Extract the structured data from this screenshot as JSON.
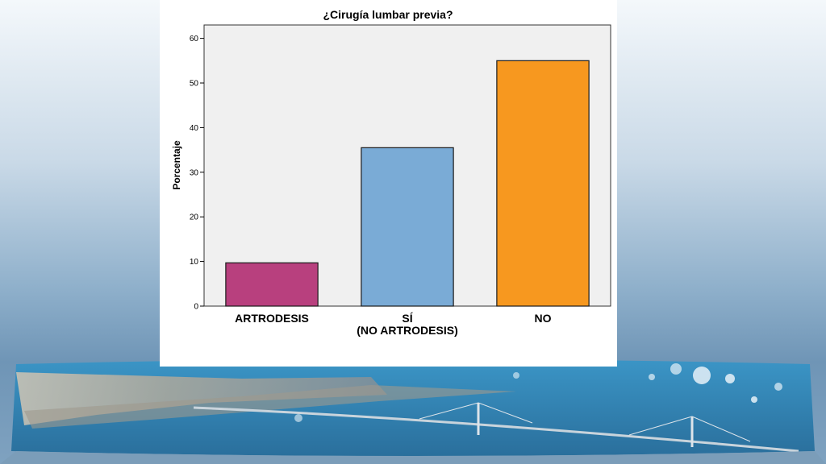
{
  "slide": {
    "background_image": "harbor-bridge-panorama",
    "colors": {
      "sky_top": "#f4f8fb",
      "sky_bottom": "#6f95b6",
      "sea": "#2f86b8"
    }
  },
  "chart_data": {
    "type": "bar",
    "title": "¿Cirugía lumbar previa?",
    "xlabel": "",
    "ylabel": "Porcentaje",
    "ylim": [
      0,
      63
    ],
    "yticks": [
      0,
      10,
      20,
      30,
      40,
      50,
      60
    ],
    "grid": false,
    "legend": "none",
    "plot_background": "#f0f0f0",
    "categories": [
      [
        "ARTRODESIS"
      ],
      [
        "SÍ",
        "(NO ARTRODESIS)"
      ],
      [
        "NO"
      ]
    ],
    "values": [
      9.7,
      35.5,
      55.0
    ],
    "colors": [
      "#b8407e",
      "#7aabd6",
      "#f7981f"
    ]
  }
}
